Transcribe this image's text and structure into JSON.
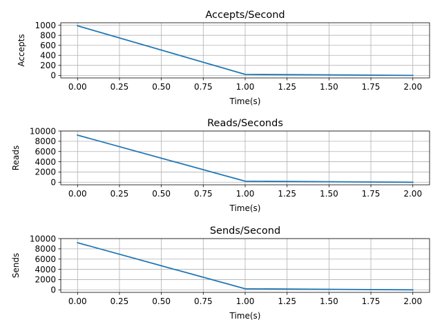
{
  "chart_data": [
    {
      "type": "line",
      "title": "Accepts/Second",
      "xlabel": "Time(s)",
      "ylabel": "Accepts",
      "xlim": [
        -0.1,
        2.1
      ],
      "ylim": [
        -50,
        1050
      ],
      "xticks": [
        0.0,
        0.25,
        0.5,
        0.75,
        1.0,
        1.25,
        1.5,
        1.75,
        2.0
      ],
      "xtick_labels": [
        "0.00",
        "0.25",
        "0.50",
        "0.75",
        "1.00",
        "1.25",
        "1.50",
        "1.75",
        "2.00"
      ],
      "yticks": [
        0,
        200,
        400,
        600,
        800,
        1000
      ],
      "ytick_labels": [
        "0",
        "200",
        "400",
        "600",
        "800",
        "1000"
      ],
      "grid": true,
      "color": "#1f77b4",
      "x": [
        0,
        1,
        2
      ],
      "y": [
        990,
        20,
        0
      ]
    },
    {
      "type": "line",
      "title": "Reads/Seconds",
      "xlabel": "Time(s)",
      "ylabel": "Reads",
      "xlim": [
        -0.1,
        2.1
      ],
      "ylim": [
        -500,
        10000
      ],
      "xticks": [
        0.0,
        0.25,
        0.5,
        0.75,
        1.0,
        1.25,
        1.5,
        1.75,
        2.0
      ],
      "xtick_labels": [
        "0.00",
        "0.25",
        "0.50",
        "0.75",
        "1.00",
        "1.25",
        "1.50",
        "1.75",
        "2.00"
      ],
      "yticks": [
        0,
        2000,
        4000,
        6000,
        8000,
        10000
      ],
      "ytick_labels": [
        "0",
        "2000",
        "4000",
        "6000",
        "8000",
        "10000"
      ],
      "grid": true,
      "color": "#1f77b4",
      "x": [
        0,
        1,
        2
      ],
      "y": [
        9200,
        200,
        0
      ]
    },
    {
      "type": "line",
      "title": "Sends/Second",
      "xlabel": "Time(s)",
      "ylabel": "Sends",
      "xlim": [
        -0.1,
        2.1
      ],
      "ylim": [
        -500,
        10000
      ],
      "xticks": [
        0.0,
        0.25,
        0.5,
        0.75,
        1.0,
        1.25,
        1.5,
        1.75,
        2.0
      ],
      "xtick_labels": [
        "0.00",
        "0.25",
        "0.50",
        "0.75",
        "1.00",
        "1.25",
        "1.50",
        "1.75",
        "2.00"
      ],
      "yticks": [
        0,
        2000,
        4000,
        6000,
        8000,
        10000
      ],
      "ytick_labels": [
        "0",
        "2000",
        "4000",
        "6000",
        "8000",
        "10000"
      ],
      "grid": true,
      "color": "#1f77b4",
      "x": [
        0,
        1,
        2
      ],
      "y": [
        9200,
        200,
        0
      ]
    }
  ]
}
